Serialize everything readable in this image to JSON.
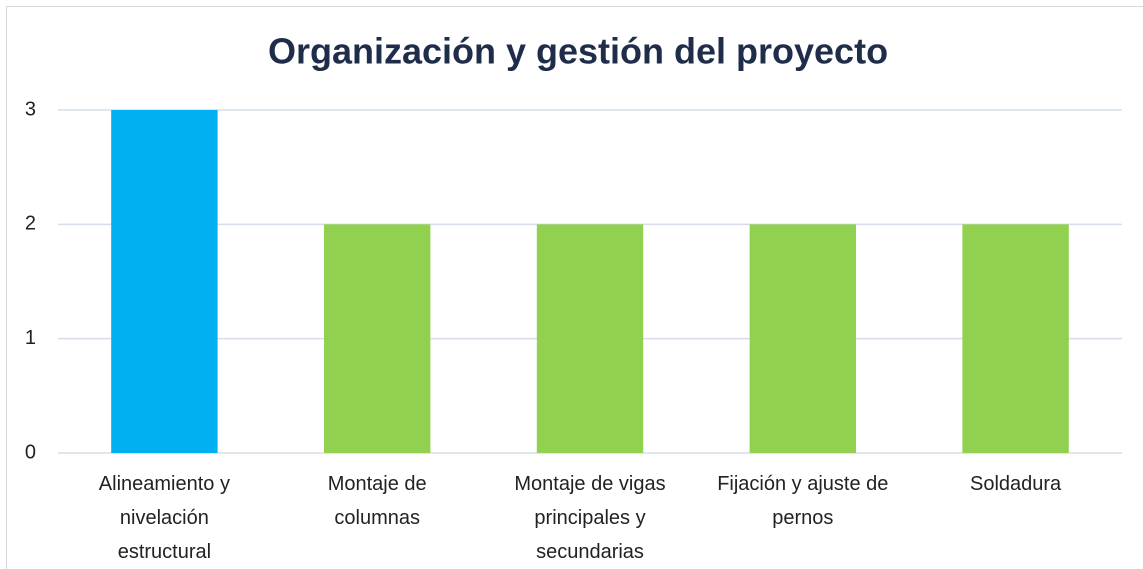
{
  "chart_data": {
    "type": "bar",
    "title": "Organización y gestión del proyecto",
    "categories": [
      "Alineamiento y nivelación estructural",
      "Montaje de columnas",
      "Montaje de vigas principales y secundarias",
      "Fijación y ajuste de pernos",
      "Soldadura"
    ],
    "values": [
      3,
      2,
      2,
      2,
      2
    ],
    "colors": [
      "#00b0f0",
      "#92d050",
      "#92d050",
      "#92d050",
      "#92d050"
    ],
    "ylim": [
      0,
      3
    ],
    "yticks": [
      0,
      1,
      2,
      3
    ],
    "grid": true
  }
}
